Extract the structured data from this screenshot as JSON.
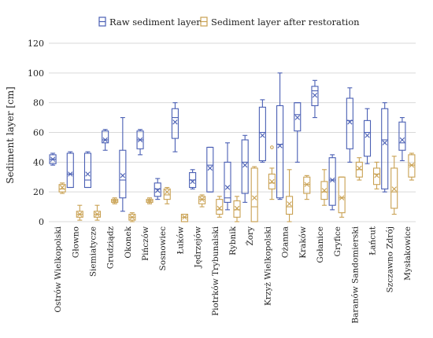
{
  "chart_data": {
    "type": "box",
    "title": "",
    "xlabel": "",
    "ylabel": "Sediment layer [cm]",
    "ylim": [
      0,
      120
    ],
    "yticks": [
      0,
      20,
      40,
      60,
      80,
      100,
      120
    ],
    "grid": "horizontal",
    "legend": "top",
    "categories": [
      "Ostrów Wielkopolski",
      "Głowno",
      "Siemiatycze",
      "Grudziądz",
      "Okonek",
      "Pińczów",
      "Sosnowiec",
      "Łuków",
      "Jędrzejów",
      "Piotrków Trybunalski",
      "Rybnik",
      "Żory",
      "Krzyż Wielkopolski",
      "Ożanna",
      "Kraków",
      "Gołanice",
      "Gryfice",
      "Baranów Sandomierski",
      "Łańcut",
      "Szczawno Zdrój",
      "Mysłakowice"
    ],
    "series": [
      {
        "name": "Raw sediment layer",
        "color": "#4a5fb4",
        "boxes": [
          {
            "min": 38,
            "q1": 39,
            "median": 42,
            "mean": 42,
            "q3": 45,
            "max": 46
          },
          {
            "min": 23,
            "q1": 23,
            "median": 32,
            "mean": 32,
            "q3": 46,
            "max": 47
          },
          {
            "min": 23,
            "q1": 23,
            "median": 28,
            "mean": 32,
            "q3": 46,
            "max": 47
          },
          {
            "min": 48,
            "q1": 53,
            "median": 55,
            "mean": 55,
            "q3": 61,
            "max": 62
          },
          {
            "min": 7,
            "q1": 16,
            "median": 28,
            "mean": 31,
            "q3": 48,
            "max": 70
          },
          {
            "min": 45,
            "q1": 49,
            "median": 55,
            "mean": 55,
            "q3": 61,
            "max": 62
          },
          {
            "min": 15,
            "q1": 17,
            "median": 22,
            "mean": 21,
            "q3": 26,
            "max": 29
          },
          {
            "min": 47,
            "q1": 56,
            "median": 70,
            "mean": 67,
            "q3": 76,
            "max": 80
          },
          {
            "min": 22,
            "q1": 23,
            "median": 28,
            "mean": 27,
            "q3": 33,
            "max": 35
          },
          {
            "min": 20,
            "q1": 20,
            "median": 38,
            "mean": 36,
            "q3": 50,
            "max": 50
          },
          {
            "min": 8,
            "q1": 13,
            "median": 16,
            "mean": 23,
            "q3": 40,
            "max": 53
          },
          {
            "min": 13,
            "q1": 19,
            "median": 40,
            "mean": 38,
            "q3": 55,
            "max": 58
          },
          {
            "min": 40,
            "q1": 41,
            "median": 60,
            "mean": 58,
            "q3": 77,
            "max": 82
          },
          {
            "min": 15,
            "q1": 16,
            "median": 52,
            "mean": 51,
            "q3": 78,
            "max": 100
          },
          {
            "min": 40,
            "q1": 61,
            "median": 72,
            "mean": 70,
            "q3": 80,
            "max": 80
          },
          {
            "min": 70,
            "q1": 78,
            "median": 88,
            "mean": 85,
            "q3": 91,
            "max": 95
          },
          {
            "min": 8,
            "q1": 11,
            "median": 28,
            "mean": 28,
            "q3": 43,
            "max": 45
          },
          {
            "min": 40,
            "q1": 49,
            "median": 68,
            "mean": 67,
            "q3": 83,
            "max": 90
          },
          {
            "min": 39,
            "q1": 44,
            "median": 60,
            "mean": 58,
            "q3": 68,
            "max": 76
          },
          {
            "min": 20,
            "q1": 22,
            "median": 55,
            "mean": 53,
            "q3": 76,
            "max": 80
          },
          {
            "min": 41,
            "q1": 48,
            "median": 53,
            "mean": 55,
            "q3": 67,
            "max": 70
          }
        ]
      },
      {
        "name": "Sediment layer after restoration",
        "color": "#c9a152",
        "boxes": [
          {
            "min": 19,
            "q1": 20,
            "median": 22,
            "mean": 23,
            "q3": 25,
            "max": 26,
            "outliers": []
          },
          {
            "min": 1,
            "q1": 3,
            "median": 5,
            "mean": 5,
            "q3": 7,
            "max": 11,
            "outliers": []
          },
          {
            "min": 1,
            "q1": 3,
            "median": 5,
            "mean": 5,
            "q3": 7,
            "max": 11,
            "outliers": []
          },
          {
            "min": 12,
            "q1": 13,
            "median": 14,
            "mean": 14,
            "q3": 15,
            "max": 16,
            "outliers": []
          },
          {
            "min": 0,
            "q1": 1,
            "median": 3,
            "mean": 3,
            "q3": 5,
            "max": 6,
            "outliers": []
          },
          {
            "min": 12,
            "q1": 13,
            "median": 14,
            "mean": 14,
            "q3": 15,
            "max": 16,
            "outliers": []
          },
          {
            "min": 12,
            "q1": 15,
            "median": 18,
            "mean": 20,
            "q3": 22,
            "max": 23,
            "outliers": []
          },
          {
            "min": 0,
            "q1": 0,
            "median": 3,
            "mean": 3,
            "q3": 5,
            "max": 5,
            "outliers": []
          },
          {
            "min": 10,
            "q1": 12,
            "median": 15,
            "mean": 15,
            "q3": 17,
            "max": 18,
            "outliers": []
          },
          {
            "min": 3,
            "q1": 5,
            "median": 8,
            "mean": 9,
            "q3": 15,
            "max": 17,
            "outliers": []
          },
          {
            "min": 0,
            "q1": 3,
            "median": 8,
            "mean": 9,
            "q3": 14,
            "max": 17,
            "outliers": []
          },
          {
            "min": 0,
            "q1": 0,
            "median": 10,
            "mean": 16,
            "q3": 36,
            "max": 37,
            "outliers": []
          },
          {
            "min": 15,
            "q1": 22,
            "median": 26,
            "mean": 27,
            "q3": 32,
            "max": 36,
            "outliers": [
              50
            ]
          },
          {
            "min": 0,
            "q1": 5,
            "median": 10,
            "mean": 12,
            "q3": 17,
            "max": 35,
            "outliers": []
          },
          {
            "min": 15,
            "q1": 19,
            "median": 25,
            "mean": 25,
            "q3": 30,
            "max": 31,
            "outliers": []
          },
          {
            "min": 11,
            "q1": 15,
            "median": 20,
            "mean": 21,
            "q3": 27,
            "max": 35,
            "outliers": []
          },
          {
            "min": 3,
            "q1": 6,
            "median": 16,
            "mean": 16,
            "q3": 30,
            "max": 30,
            "outliers": []
          },
          {
            "min": 28,
            "q1": 30,
            "median": 35,
            "mean": 36,
            "q3": 40,
            "max": 43,
            "outliers": []
          },
          {
            "min": 22,
            "q1": 25,
            "median": 32,
            "mean": 31,
            "q3": 36,
            "max": 40,
            "outliers": []
          },
          {
            "min": 5,
            "q1": 9,
            "median": 20,
            "mean": 22,
            "q3": 36,
            "max": 44,
            "outliers": []
          },
          {
            "min": 28,
            "q1": 30,
            "median": 38,
            "mean": 38,
            "q3": 45,
            "max": 46,
            "outliers": []
          }
        ]
      }
    ]
  }
}
